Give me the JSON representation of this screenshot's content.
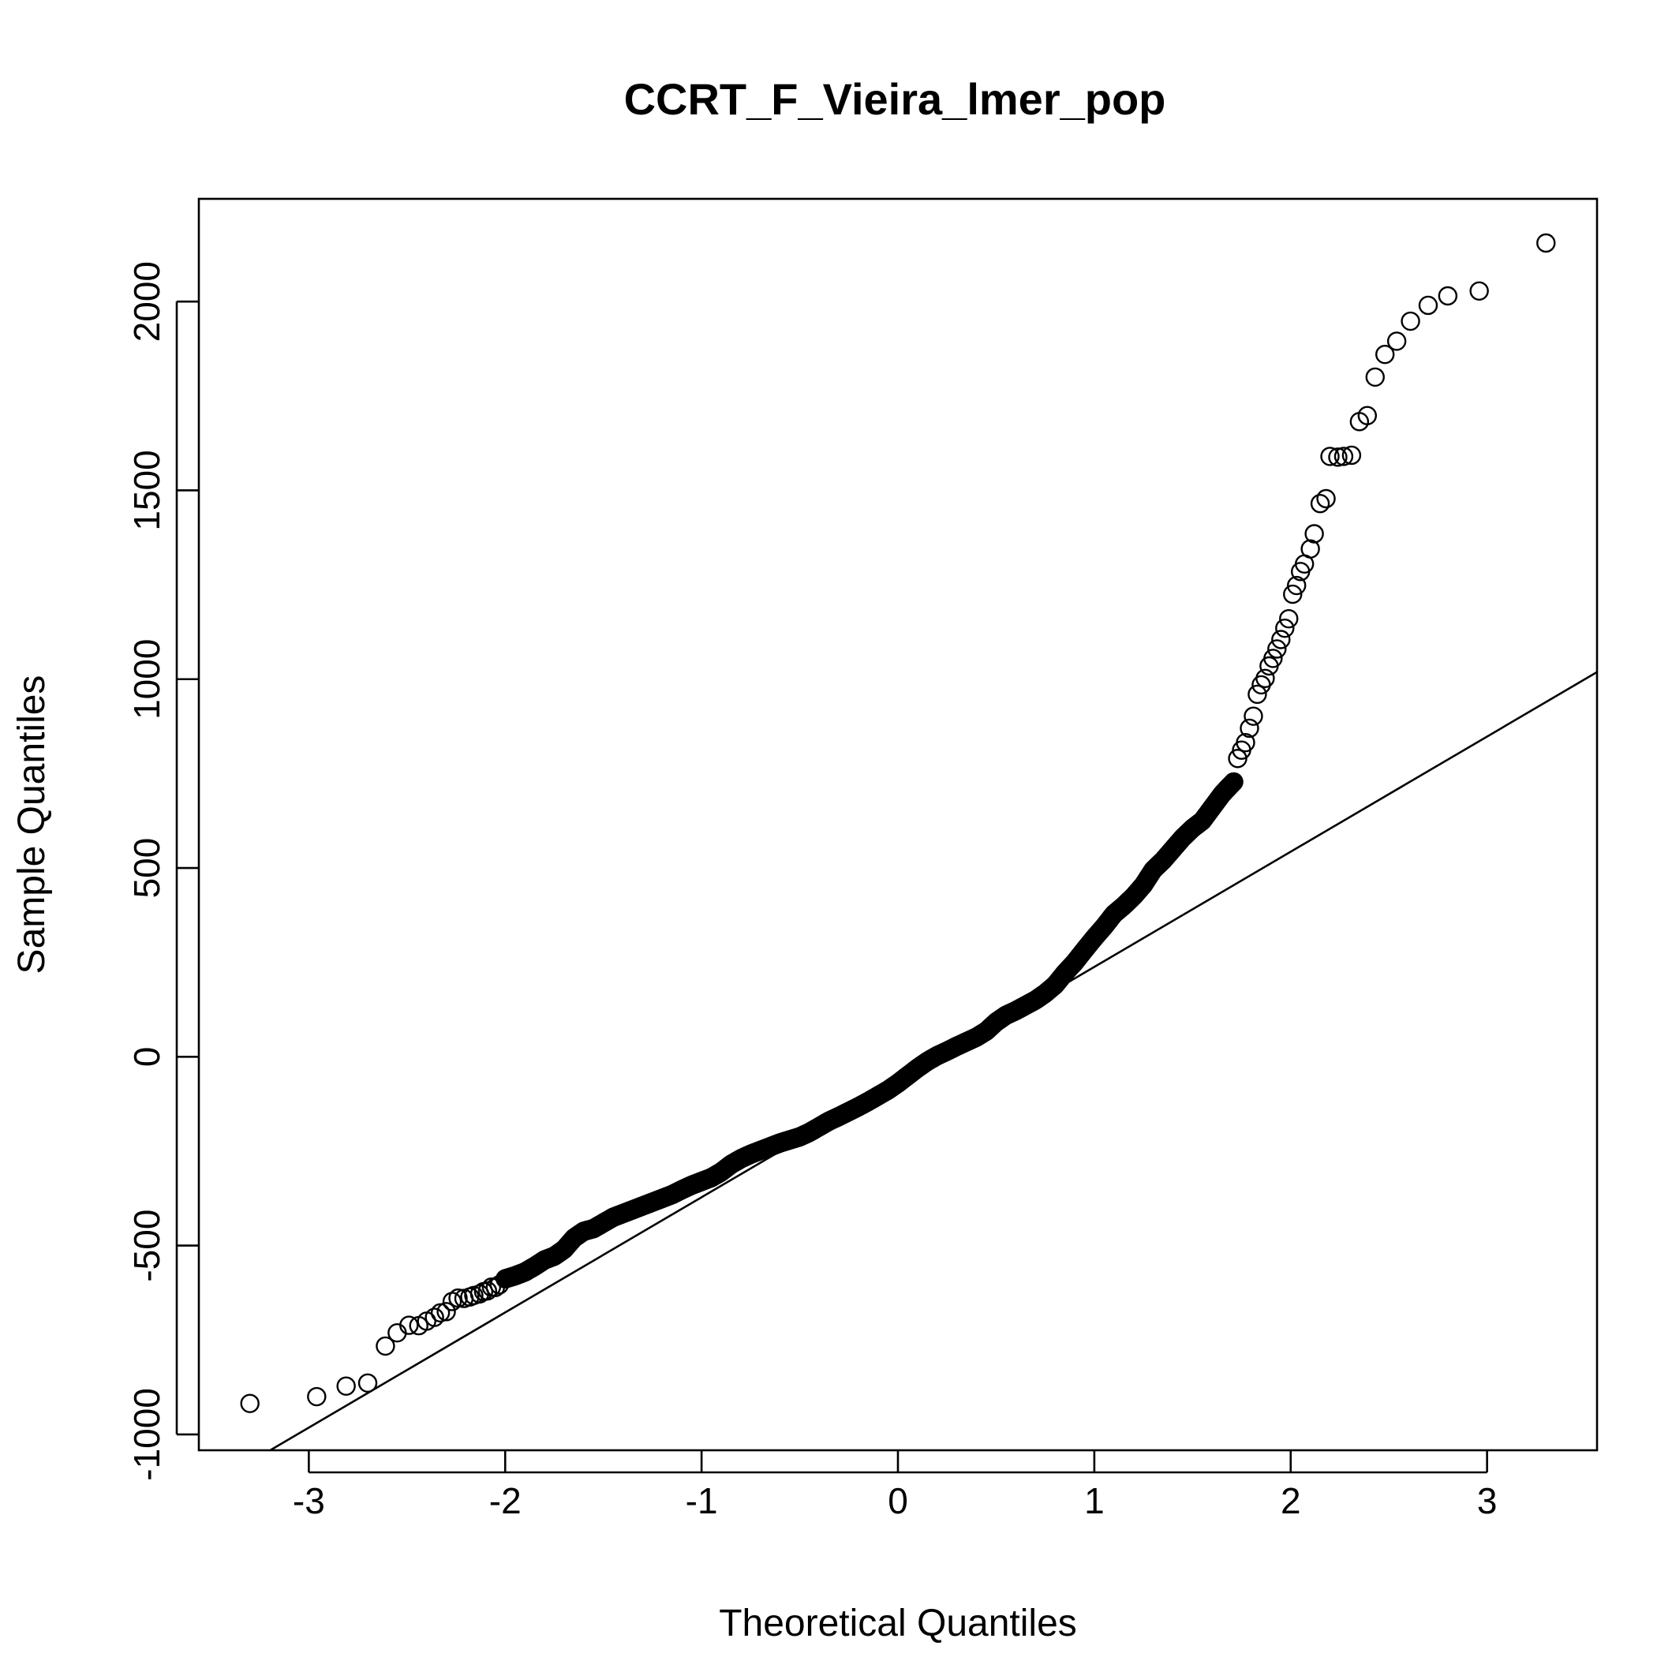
{
  "chart_data": {
    "type": "scatter",
    "subtype": "normal-qq-plot",
    "title": "CCRT_F_Vieira_lmer_pop",
    "xlabel": "Theoretical Quantiles",
    "ylabel": "Sample Quantiles",
    "xlim": [
      -3.56,
      3.56
    ],
    "ylim": [
      -1042,
      2272
    ],
    "x_ticks": [
      -3,
      -2,
      -1,
      0,
      1,
      2,
      3
    ],
    "x_tick_labels": [
      "-3",
      "-2",
      "-1",
      "0",
      "1",
      "2",
      "3"
    ],
    "y_ticks": [
      -1000,
      -500,
      0,
      500,
      1000,
      1500,
      2000
    ],
    "y_tick_labels": [
      "-1000",
      "-500",
      "0",
      "500",
      "1000",
      "1500",
      "2000"
    ],
    "grid": false,
    "legend": "none",
    "reference_line": {
      "intercept": -67,
      "slope": 305
    },
    "marker": "open-circle",
    "points": [
      [
        -3.3,
        -918
      ],
      [
        -2.96,
        -900
      ],
      [
        -2.81,
        -872
      ],
      [
        -2.7,
        -864
      ],
      [
        -2.61,
        -766
      ],
      [
        -2.55,
        -731
      ],
      [
        -2.49,
        -711
      ],
      [
        -2.44,
        -712
      ],
      [
        -2.4,
        -700
      ],
      [
        -2.36,
        -690
      ],
      [
        -2.33,
        -678
      ],
      [
        -2.3,
        -675
      ],
      [
        -2.27,
        -648
      ],
      [
        -2.24,
        -639
      ],
      [
        -2.21,
        -640
      ],
      [
        -2.18,
        -636
      ],
      [
        -2.16,
        -632
      ],
      [
        -2.13,
        -628
      ],
      [
        -2.11,
        -622
      ],
      [
        -2.09,
        -620
      ],
      [
        -2.07,
        -610
      ],
      [
        -2.05,
        -611
      ],
      [
        -2.03,
        -604
      ],
      [
        -2.0,
        -588
      ],
      [
        -1.95,
        -580
      ],
      [
        -1.9,
        -570
      ],
      [
        -1.85,
        -555
      ],
      [
        -1.8,
        -538
      ],
      [
        -1.75,
        -528
      ],
      [
        -1.7,
        -510
      ],
      [
        -1.65,
        -480
      ],
      [
        -1.6,
        -462
      ],
      [
        -1.55,
        -455
      ],
      [
        -1.5,
        -440
      ],
      [
        -1.45,
        -425
      ],
      [
        -1.4,
        -415
      ],
      [
        -1.35,
        -405
      ],
      [
        -1.3,
        -395
      ],
      [
        -1.25,
        -385
      ],
      [
        -1.2,
        -375
      ],
      [
        -1.15,
        -365
      ],
      [
        -1.1,
        -352
      ],
      [
        -1.05,
        -340
      ],
      [
        -1.0,
        -330
      ],
      [
        -0.95,
        -320
      ],
      [
        -0.9,
        -305
      ],
      [
        -0.85,
        -285
      ],
      [
        -0.8,
        -270
      ],
      [
        -0.75,
        -258
      ],
      [
        -0.7,
        -248
      ],
      [
        -0.65,
        -238
      ],
      [
        -0.6,
        -228
      ],
      [
        -0.55,
        -220
      ],
      [
        -0.5,
        -212
      ],
      [
        -0.45,
        -200
      ],
      [
        -0.4,
        -185
      ],
      [
        -0.35,
        -170
      ],
      [
        -0.3,
        -158
      ],
      [
        -0.25,
        -145
      ],
      [
        -0.2,
        -132
      ],
      [
        -0.15,
        -118
      ],
      [
        -0.1,
        -103
      ],
      [
        -0.05,
        -88
      ],
      [
        0.0,
        -70
      ],
      [
        0.05,
        -50
      ],
      [
        0.1,
        -30
      ],
      [
        0.15,
        -12
      ],
      [
        0.2,
        3
      ],
      [
        0.25,
        15
      ],
      [
        0.3,
        28
      ],
      [
        0.35,
        40
      ],
      [
        0.4,
        52
      ],
      [
        0.45,
        68
      ],
      [
        0.5,
        92
      ],
      [
        0.55,
        110
      ],
      [
        0.6,
        122
      ],
      [
        0.65,
        136
      ],
      [
        0.7,
        150
      ],
      [
        0.75,
        168
      ],
      [
        0.8,
        190
      ],
      [
        0.85,
        222
      ],
      [
        0.9,
        250
      ],
      [
        0.95,
        283
      ],
      [
        1.0,
        315
      ],
      [
        1.05,
        345
      ],
      [
        1.1,
        378
      ],
      [
        1.15,
        400
      ],
      [
        1.2,
        425
      ],
      [
        1.25,
        455
      ],
      [
        1.3,
        495
      ],
      [
        1.35,
        520
      ],
      [
        1.4,
        550
      ],
      [
        1.45,
        580
      ],
      [
        1.5,
        605
      ],
      [
        1.55,
        625
      ],
      [
        1.6,
        660
      ],
      [
        1.65,
        695
      ],
      [
        1.68,
        712
      ],
      [
        1.71,
        728
      ],
      [
        1.73,
        790
      ],
      [
        1.75,
        812
      ],
      [
        1.77,
        832
      ],
      [
        1.79,
        870
      ],
      [
        1.81,
        902
      ],
      [
        1.83,
        960
      ],
      [
        1.85,
        985
      ],
      [
        1.87,
        1002
      ],
      [
        1.89,
        1035
      ],
      [
        1.91,
        1055
      ],
      [
        1.93,
        1080
      ],
      [
        1.95,
        1105
      ],
      [
        1.97,
        1135
      ],
      [
        1.99,
        1160
      ],
      [
        2.01,
        1225
      ],
      [
        2.03,
        1248
      ],
      [
        2.05,
        1285
      ],
      [
        2.07,
        1305
      ],
      [
        2.1,
        1345
      ],
      [
        2.12,
        1385
      ],
      [
        2.15,
        1465
      ],
      [
        2.18,
        1478
      ],
      [
        2.2,
        1590
      ],
      [
        2.24,
        1588
      ],
      [
        2.27,
        1590
      ],
      [
        2.31,
        1593
      ],
      [
        2.35,
        1682
      ],
      [
        2.39,
        1698
      ],
      [
        2.43,
        1800
      ],
      [
        2.48,
        1860
      ],
      [
        2.54,
        1895
      ],
      [
        2.61,
        1948
      ],
      [
        2.7,
        1990
      ],
      [
        2.8,
        2015
      ],
      [
        2.96,
        2028
      ],
      [
        3.3,
        2155
      ]
    ]
  }
}
